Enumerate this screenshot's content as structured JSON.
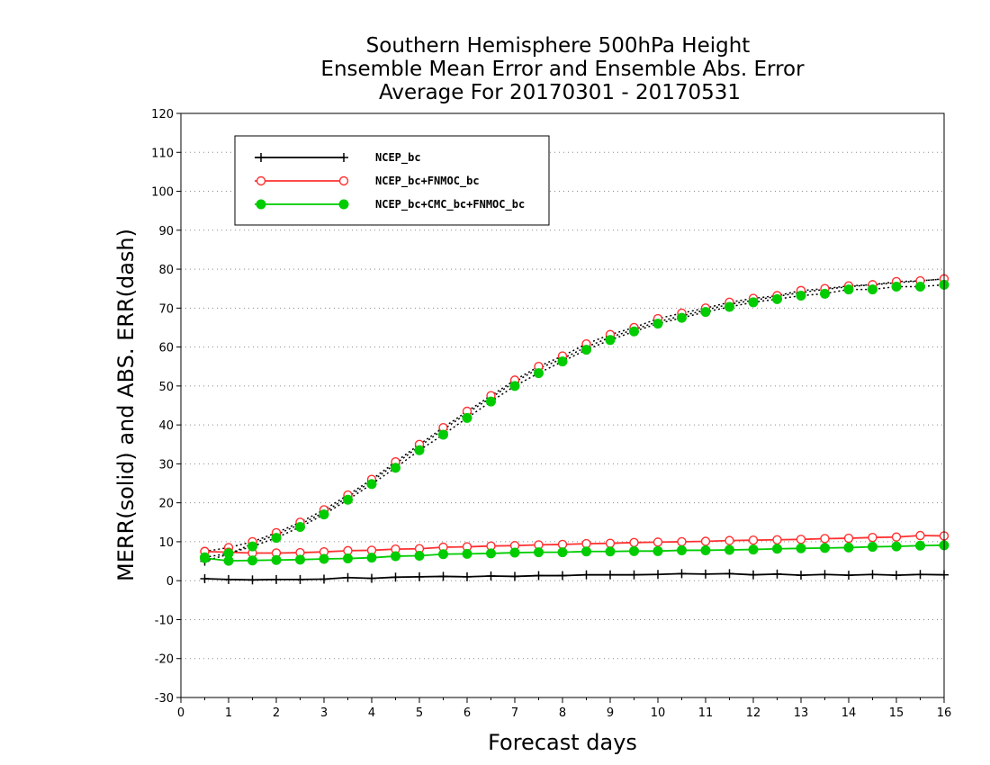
{
  "chart_data": {
    "type": "line",
    "title": [
      "Southern Hemisphere 500hPa Height",
      "Ensemble Mean Error and Ensemble Abs. Error",
      "Average For 20170301 - 20170531"
    ],
    "xlabel": "Forecast days",
    "ylabel": "MERR(solid) and ABS. ERR(dash)",
    "xlim": [
      0,
      16
    ],
    "ylim": [
      -30,
      120
    ],
    "x_ticks": [
      0,
      1,
      2,
      3,
      4,
      5,
      6,
      7,
      8,
      9,
      10,
      11,
      12,
      13,
      14,
      15,
      16
    ],
    "y_ticks": [
      -30,
      -20,
      -10,
      0,
      10,
      20,
      30,
      40,
      50,
      60,
      70,
      80,
      90,
      100,
      110,
      120
    ],
    "grid": "dotted horizontal",
    "legend_position": "top-left",
    "x": [
      0.5,
      1,
      1.5,
      2,
      2.5,
      3,
      3.5,
      4,
      4.5,
      5,
      5.5,
      6,
      6.5,
      7,
      7.5,
      8,
      8.5,
      9,
      9.5,
      10,
      10.5,
      11,
      11.5,
      12,
      12.5,
      13,
      13.5,
      14,
      14.5,
      15,
      15.5,
      16
    ],
    "series": [
      {
        "name": "NCEP_bc",
        "color": "#000000",
        "marker": "plus",
        "merr": [
          0.5,
          0.3,
          0.2,
          0.3,
          0.3,
          0.4,
          0.8,
          0.6,
          0.9,
          1.0,
          1.1,
          1.0,
          1.2,
          1.1,
          1.3,
          1.3,
          1.5,
          1.5,
          1.5,
          1.6,
          1.8,
          1.7,
          1.8,
          1.5,
          1.7,
          1.4,
          1.6,
          1.4,
          1.6,
          1.4,
          1.6,
          1.5
        ],
        "abs_err": [
          5.0,
          6.8,
          9.5,
          11.8,
          14.5,
          17.5,
          21.5,
          25.5,
          30.0,
          34.5,
          38.8,
          43.0,
          47.0,
          51.0,
          54.5,
          57.0,
          60.0,
          62.5,
          64.5,
          66.5,
          68.0,
          69.5,
          71.0,
          72.0,
          73.0,
          74.0,
          74.8,
          75.5,
          76.0,
          76.5,
          77.0,
          77.5
        ]
      },
      {
        "name": "NCEP_bc+FNMOC_bc",
        "color": "#ff3030",
        "marker": "open-circle",
        "merr": [
          7.5,
          7.3,
          7.1,
          7.1,
          7.2,
          7.4,
          7.7,
          7.8,
          8.1,
          8.2,
          8.6,
          8.7,
          8.9,
          9.0,
          9.2,
          9.3,
          9.5,
          9.6,
          9.8,
          9.9,
          10.0,
          10.1,
          10.3,
          10.4,
          10.5,
          10.6,
          10.8,
          10.9,
          11.1,
          11.2,
          11.6,
          11.5
        ],
        "abs_err": [
          7.5,
          8.5,
          10.0,
          12.3,
          15.0,
          18.2,
          22.0,
          26.0,
          30.5,
          35.0,
          39.3,
          43.5,
          47.5,
          51.5,
          55.0,
          57.7,
          60.8,
          63.2,
          65.0,
          67.3,
          68.7,
          70.0,
          71.5,
          72.5,
          73.2,
          74.5,
          75.0,
          75.7,
          76.0,
          76.8,
          77.0,
          77.5
        ]
      },
      {
        "name": "NCEP_bc+CMC_bc+FNMOC_bc",
        "color": "#00cc00",
        "marker": "filled-circle",
        "merr": [
          5.8,
          5.1,
          5.2,
          5.3,
          5.4,
          5.6,
          5.7,
          5.9,
          6.3,
          6.4,
          6.8,
          6.9,
          7.0,
          7.2,
          7.3,
          7.3,
          7.5,
          7.5,
          7.6,
          7.6,
          7.8,
          7.8,
          7.9,
          8.0,
          8.2,
          8.3,
          8.4,
          8.5,
          8.7,
          8.8,
          9.0,
          9.1
        ],
        "abs_err": [
          6.0,
          7.0,
          8.8,
          11.0,
          13.8,
          17.0,
          20.8,
          24.8,
          29.0,
          33.5,
          37.5,
          41.8,
          46.0,
          50.0,
          53.3,
          56.3,
          59.3,
          61.8,
          64.0,
          66.0,
          67.5,
          69.0,
          70.3,
          71.5,
          72.3,
          73.2,
          73.7,
          74.8,
          74.8,
          75.5,
          75.5,
          76.0
        ]
      }
    ]
  }
}
